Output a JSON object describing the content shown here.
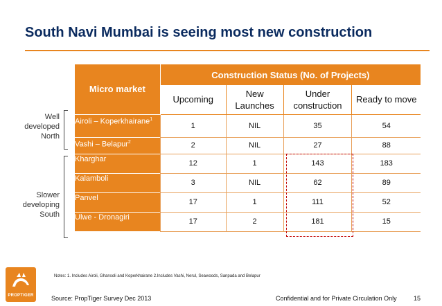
{
  "title": "South Navi Mumbai is seeing most new construction",
  "side_labels": {
    "well_developed": "Well developed North",
    "slower_developing": "Slower developing South"
  },
  "table": {
    "micro_market_header": "Micro market",
    "status_header": "Construction Status (No. of Projects)",
    "columns": [
      "Upcoming",
      "New Launches",
      "Under construction",
      "Ready to move"
    ],
    "rows": [
      {
        "name": "Airoli – Koperkhairane",
        "sup": "1",
        "values": [
          "1",
          "NIL",
          "35",
          "54"
        ]
      },
      {
        "name": "Vashi – Belapur",
        "sup": "2",
        "values": [
          "2",
          "NIL",
          "27",
          "88"
        ]
      },
      {
        "name": "Kharghar",
        "sup": "",
        "values": [
          "12",
          "1",
          "143",
          "183"
        ]
      },
      {
        "name": "Kalamboli",
        "sup": "",
        "values": [
          "3",
          "NIL",
          "62",
          "89"
        ]
      },
      {
        "name": "Panvel",
        "sup": "",
        "values": [
          "17",
          "1",
          "111",
          "52"
        ]
      },
      {
        "name": "Ulwe - Dronagiri",
        "sup": "",
        "values": [
          "17",
          "2",
          "181",
          "15"
        ]
      }
    ]
  },
  "notes": "Notes: 1. Includes Airoli, Ghansoli and Koperkhairane  2.Includes Vashi, Nerul, Seawoods, Sanpada and Belapur",
  "source": "Source: PropTiger Survey Dec 2013",
  "confidential": "Confidential and for Private Circulation Only",
  "page_number": "15",
  "logo": {
    "text": "PROPTIGER",
    "icon": "tiger-logo-icon"
  },
  "colors": {
    "accent": "#e8851f",
    "title": "#0a2a5e",
    "highlight": "#c00000"
  }
}
